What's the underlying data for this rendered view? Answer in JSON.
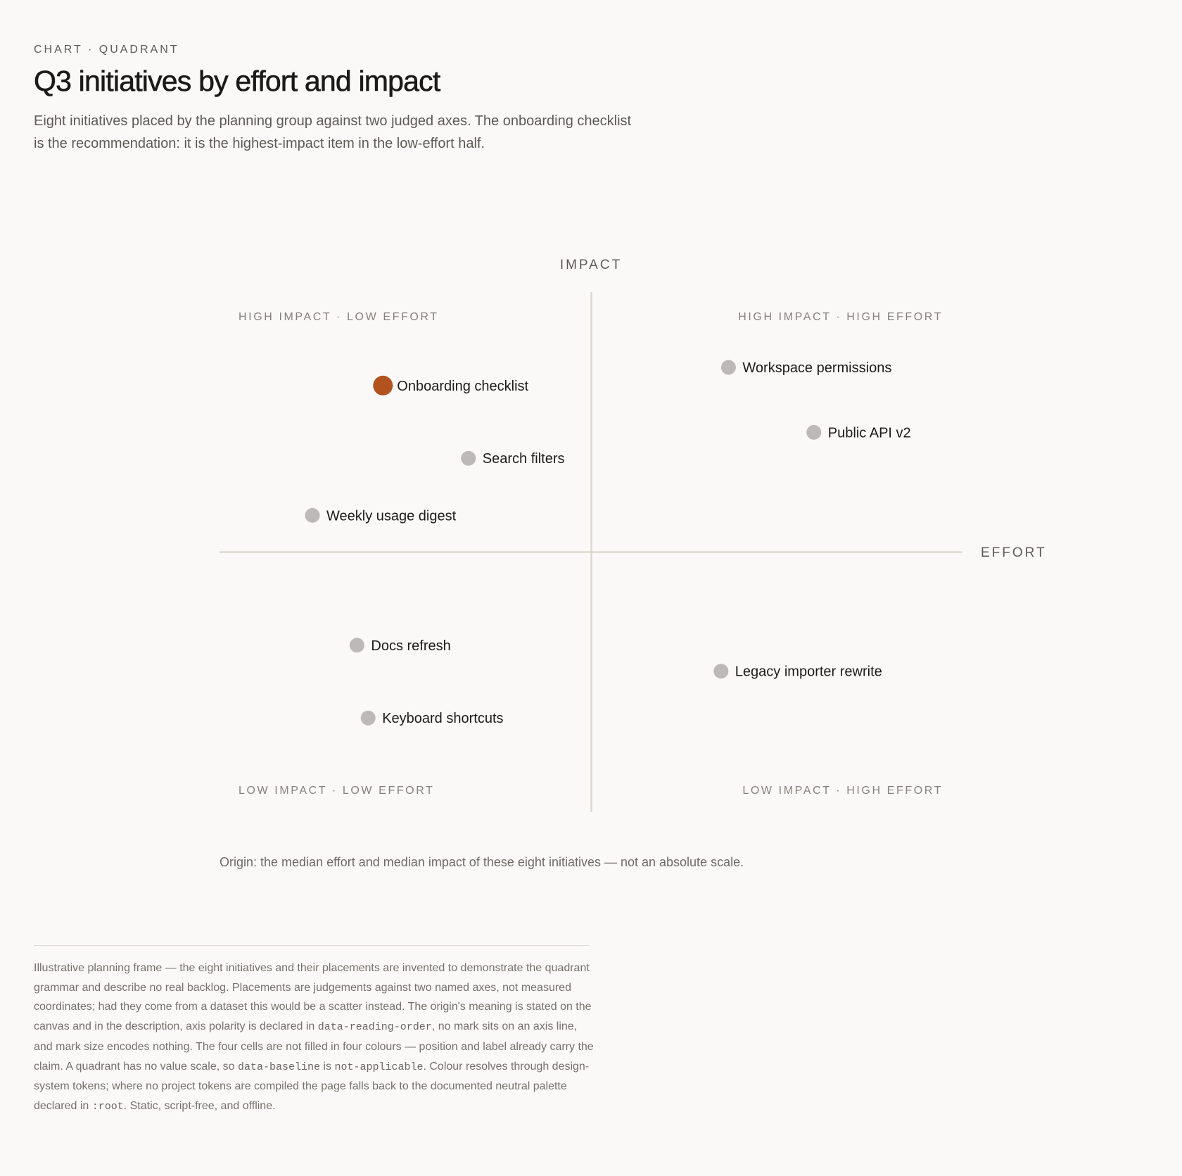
{
  "eyebrow": "CHART · QUADRANT",
  "title": "Q3 initiatives by effort and impact",
  "description": "Eight initiatives placed by the planning group against two judged axes. The onboarding checklist is the recommendation: it is the highest-impact item in the low-effort half.",
  "caption": "Origin: the median effort and median impact of these eight initiatives — not an absolute scale.",
  "colors": {
    "highlight": "#b1521f",
    "point": "#bdb9b9",
    "axis": "#dcd9d0",
    "background": "#faf9f7"
  },
  "note": {
    "p1": "Illustrative planning frame — the eight initiatives and their placements are invented to demonstrate the quadrant grammar and describe no real backlog. Placements are judgements against two named axes, not measured coordinates; had they come from a dataset this would be a scatter instead. The origin's meaning is stated on the canvas and in the description, axis polarity is declared in ",
    "code1": "data-reading-order",
    "p2": ", no mark sits on an axis line, and mark size encodes nothing. The four cells are not filled in four colours — position and label already carry the claim. A quadrant has no value scale, so ",
    "code2": "data-baseline",
    "p3": " is ",
    "code3": "not-applicable",
    "p4": ". Colour resolves through design-system tokens; where no project tokens are compiled the page falls back to the documented neutral palette declared in ",
    "code4": ":root",
    "p5": ". Static, script-free, and offline."
  },
  "chart_data": {
    "type": "scatter",
    "xlabel": "EFFORT",
    "ylabel": "IMPACT",
    "origin": "median",
    "xlim": [
      -1,
      1
    ],
    "ylim": [
      -1,
      1
    ],
    "grid": false,
    "quadrants": {
      "top_left": "HIGH IMPACT · LOW EFFORT",
      "top_right": "HIGH IMPACT · HIGH EFFORT",
      "bottom_left": "LOW IMPACT · LOW EFFORT",
      "bottom_right": "LOW IMPACT · HIGH EFFORT"
    },
    "points": [
      {
        "label": "Onboarding checklist",
        "x": -0.56,
        "y": 0.64,
        "highlight": true
      },
      {
        "label": "Search filters",
        "x": -0.33,
        "y": 0.36,
        "highlight": false
      },
      {
        "label": "Weekly usage digest",
        "x": -0.75,
        "y": 0.14,
        "highlight": false
      },
      {
        "label": "Workspace permissions",
        "x": 0.37,
        "y": 0.71,
        "highlight": false
      },
      {
        "label": "Public API v2",
        "x": 0.6,
        "y": 0.46,
        "highlight": false
      },
      {
        "label": "Docs refresh",
        "x": -0.63,
        "y": -0.36,
        "highlight": false
      },
      {
        "label": "Keyboard shortcuts",
        "x": -0.6,
        "y": -0.64,
        "highlight": false
      },
      {
        "label": "Legacy importer rewrite",
        "x": 0.35,
        "y": -0.46,
        "highlight": false
      }
    ]
  }
}
